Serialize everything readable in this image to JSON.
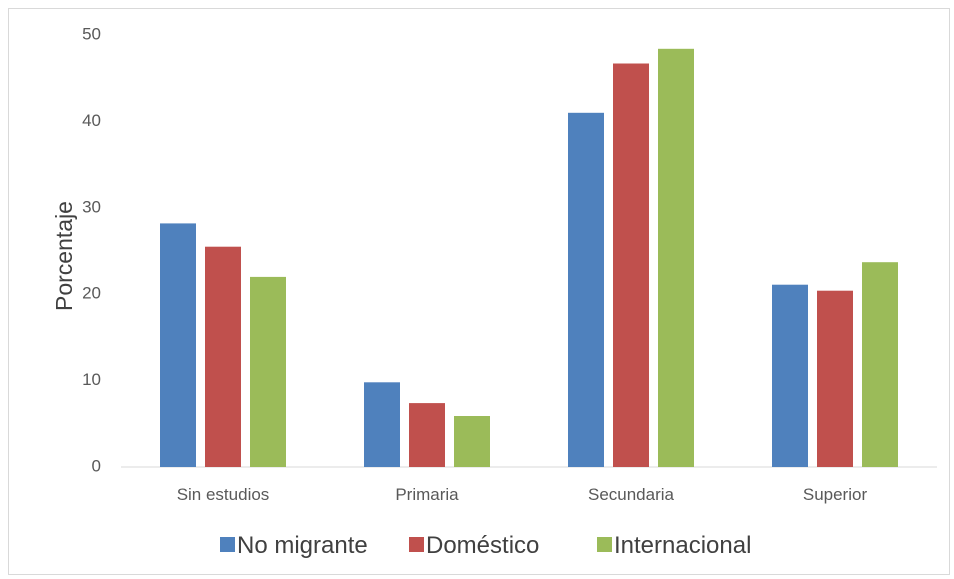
{
  "chart_data": {
    "type": "bar",
    "title": "",
    "xlabel": "",
    "ylabel": "Porcentaje",
    "categories": [
      "Sin estudios",
      "Primaria",
      "Secundaria",
      "Superior"
    ],
    "series": [
      {
        "name": "No migrante",
        "color": "#4f81bd",
        "values": [
          28.2,
          9.8,
          41.0,
          21.1
        ]
      },
      {
        "name": "Doméstico",
        "color": "#c0504d",
        "values": [
          25.5,
          7.4,
          46.7,
          20.4
        ]
      },
      {
        "name": "Internacional",
        "color": "#9bbb59",
        "values": [
          22.0,
          5.9,
          48.4,
          23.7
        ]
      }
    ],
    "ylim": [
      0,
      50
    ],
    "yticks": [
      "0",
      "10",
      "20",
      "30",
      "40",
      "50"
    ],
    "grid": false,
    "legend_position": "bottom"
  }
}
